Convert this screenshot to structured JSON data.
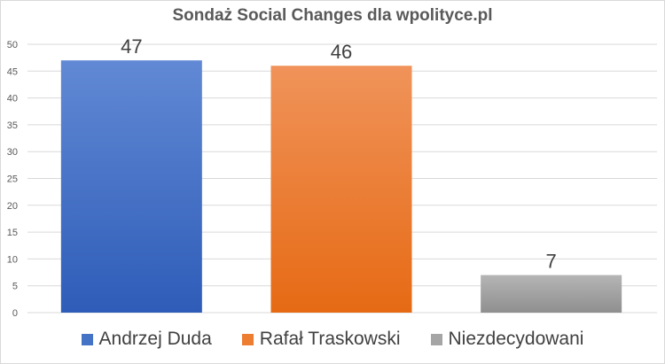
{
  "chart_data": {
    "type": "bar",
    "title": "Sondaż Social Changes dla wpolityce.pl",
    "categories": [
      "Andrzej Duda",
      "Rafał Traskowski",
      "Niezdecydowani"
    ],
    "values": [
      47,
      46,
      7
    ],
    "colors": [
      "#4472C4",
      "#ED7D31",
      "#A5A5A5"
    ],
    "ylim": [
      0,
      50
    ],
    "yticks": [
      "0",
      "5",
      "10",
      "15",
      "20",
      "25",
      "30",
      "35",
      "40",
      "45",
      "50"
    ],
    "data_labels": [
      "47",
      "46",
      "7"
    ],
    "grid": true,
    "legend": "bottom"
  }
}
